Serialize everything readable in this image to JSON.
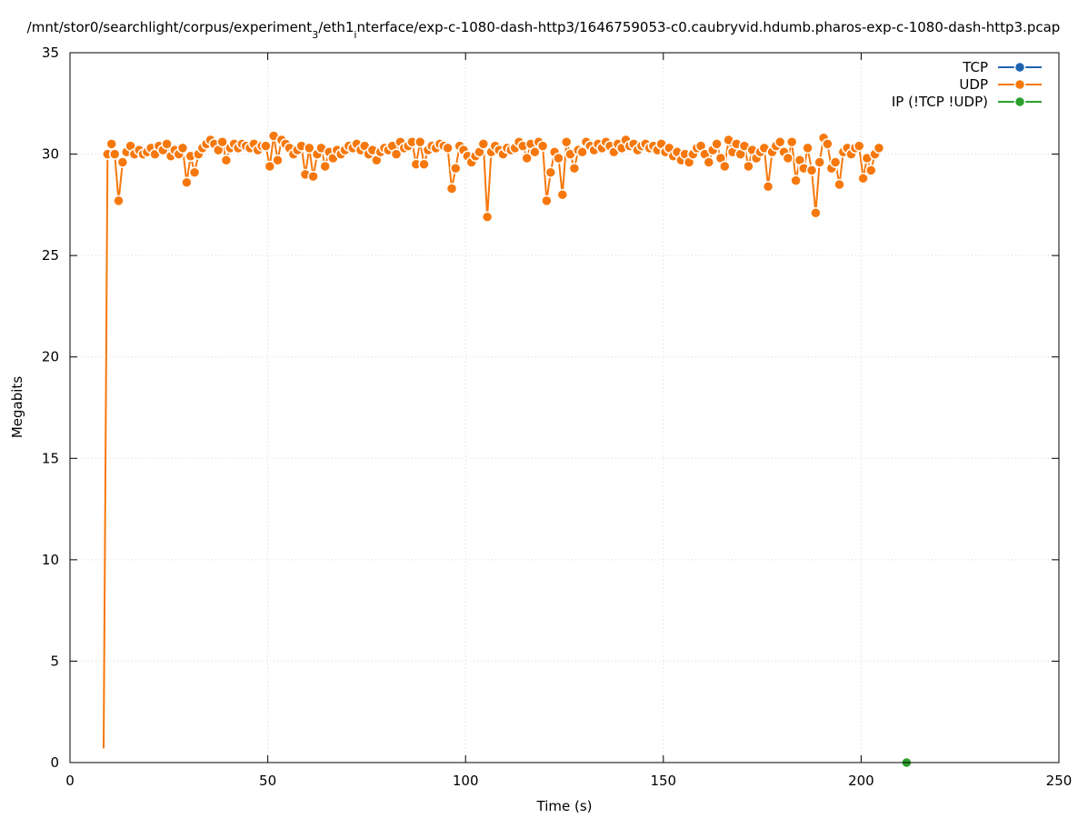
{
  "chart_data": {
    "type": "line",
    "title": "/mnt/stor0/searchlight/corpus/experiment_3/eth1_interface/exp-c-1080-dash-http3/1646759053-c0.caubryvid.hdumb.pharos-exp-c-1080-dash-http3.pcap",
    "title_parts": {
      "pre": "/mnt/stor0/searchlight/corpus/experiment",
      "sub1": "3",
      "mid": "/eth1",
      "sub2": "i",
      "post": "nterface/exp-c-1080-dash-http3/1646759053-c0.caubryvid.hdumb.pharos-exp-c-1080-dash-http3.pcap"
    },
    "xlabel": "Time (s)",
    "ylabel": "Megabits",
    "xlim": [
      0,
      250
    ],
    "ylim": [
      0,
      35
    ],
    "xticks": [
      0,
      50,
      100,
      150,
      200,
      250
    ],
    "yticks": [
      0,
      5,
      10,
      15,
      20,
      25,
      30,
      35
    ],
    "grid": true,
    "legend_position": "top-right",
    "series": [
      {
        "name": "TCP",
        "color": "#1f62b0",
        "points": []
      },
      {
        "name": "UDP",
        "color": "#f6780c",
        "points": [
          [
            8.5,
            0.7
          ],
          [
            9.5,
            30.0
          ],
          [
            10.5,
            30.5
          ],
          [
            11.3,
            30.0
          ],
          [
            12.3,
            27.7
          ],
          [
            13.3,
            29.6
          ],
          [
            14.3,
            30.1
          ],
          [
            15.3,
            30.4
          ],
          [
            16.3,
            30.0
          ],
          [
            17.5,
            30.2
          ],
          [
            18.5,
            30.0
          ],
          [
            19.5,
            30.1
          ],
          [
            20.5,
            30.3
          ],
          [
            21.5,
            30.0
          ],
          [
            22.5,
            30.4
          ],
          [
            23.5,
            30.2
          ],
          [
            24.5,
            30.5
          ],
          [
            25.5,
            29.9
          ],
          [
            26.5,
            30.2
          ],
          [
            27.5,
            30.0
          ],
          [
            28.5,
            30.3
          ],
          [
            29.5,
            28.6
          ],
          [
            30.5,
            29.9
          ],
          [
            31.5,
            29.1
          ],
          [
            32.5,
            30.0
          ],
          [
            33.5,
            30.3
          ],
          [
            34.5,
            30.5
          ],
          [
            35.5,
            30.7
          ],
          [
            36.5,
            30.5
          ],
          [
            37.5,
            30.2
          ],
          [
            38.5,
            30.6
          ],
          [
            39.5,
            29.7
          ],
          [
            40.5,
            30.3
          ],
          [
            41.5,
            30.5
          ],
          [
            42.5,
            30.3
          ],
          [
            43.5,
            30.5
          ],
          [
            44.5,
            30.4
          ],
          [
            45.5,
            30.3
          ],
          [
            46.5,
            30.5
          ],
          [
            47.5,
            30.2
          ],
          [
            48.5,
            30.4
          ],
          [
            49.5,
            30.4
          ],
          [
            50.5,
            29.4
          ],
          [
            51.5,
            30.9
          ],
          [
            52.5,
            29.7
          ],
          [
            53.5,
            30.7
          ],
          [
            54.5,
            30.5
          ],
          [
            55.5,
            30.3
          ],
          [
            56.5,
            30.0
          ],
          [
            57.5,
            30.2
          ],
          [
            58.5,
            30.4
          ],
          [
            59.5,
            29.0
          ],
          [
            60.5,
            30.3
          ],
          [
            61.5,
            28.9
          ],
          [
            62.5,
            30.0
          ],
          [
            63.5,
            30.3
          ],
          [
            64.5,
            29.4
          ],
          [
            65.5,
            30.1
          ],
          [
            66.5,
            29.8
          ],
          [
            67.5,
            30.2
          ],
          [
            68.5,
            30.0
          ],
          [
            69.5,
            30.2
          ],
          [
            70.5,
            30.4
          ],
          [
            71.5,
            30.3
          ],
          [
            72.5,
            30.5
          ],
          [
            73.5,
            30.2
          ],
          [
            74.5,
            30.4
          ],
          [
            75.5,
            30.0
          ],
          [
            76.5,
            30.2
          ],
          [
            77.5,
            29.7
          ],
          [
            78.5,
            30.1
          ],
          [
            79.5,
            30.3
          ],
          [
            80.5,
            30.2
          ],
          [
            81.5,
            30.4
          ],
          [
            82.5,
            30.0
          ],
          [
            83.5,
            30.6
          ],
          [
            84.5,
            30.3
          ],
          [
            85.5,
            30.4
          ],
          [
            86.5,
            30.6
          ],
          [
            87.5,
            29.5
          ],
          [
            88.5,
            30.6
          ],
          [
            89.5,
            29.5
          ],
          [
            90.5,
            30.2
          ],
          [
            91.5,
            30.4
          ],
          [
            92.5,
            30.3
          ],
          [
            93.5,
            30.5
          ],
          [
            94.5,
            30.4
          ],
          [
            95.5,
            30.3
          ],
          [
            96.5,
            28.3
          ],
          [
            97.5,
            29.3
          ],
          [
            98.5,
            30.4
          ],
          [
            99.5,
            30.2
          ],
          [
            100.5,
            29.9
          ],
          [
            101.5,
            29.6
          ],
          [
            102.5,
            29.9
          ],
          [
            103.5,
            30.1
          ],
          [
            104.5,
            30.5
          ],
          [
            105.5,
            26.9
          ],
          [
            106.5,
            30.1
          ],
          [
            107.5,
            30.4
          ],
          [
            108.5,
            30.2
          ],
          [
            109.5,
            30.0
          ],
          [
            110.5,
            30.3
          ],
          [
            111.5,
            30.2
          ],
          [
            112.5,
            30.3
          ],
          [
            113.5,
            30.6
          ],
          [
            114.5,
            30.4
          ],
          [
            115.5,
            29.8
          ],
          [
            116.5,
            30.5
          ],
          [
            117.5,
            30.1
          ],
          [
            118.5,
            30.6
          ],
          [
            119.5,
            30.4
          ],
          [
            120.5,
            27.7
          ],
          [
            121.5,
            29.1
          ],
          [
            122.5,
            30.1
          ],
          [
            123.5,
            29.8
          ],
          [
            124.5,
            28.0
          ],
          [
            125.5,
            30.6
          ],
          [
            126.5,
            30.0
          ],
          [
            127.5,
            29.3
          ],
          [
            128.5,
            30.2
          ],
          [
            129.5,
            30.1
          ],
          [
            130.5,
            30.6
          ],
          [
            131.5,
            30.4
          ],
          [
            132.5,
            30.2
          ],
          [
            133.5,
            30.5
          ],
          [
            134.5,
            30.3
          ],
          [
            135.5,
            30.6
          ],
          [
            136.5,
            30.4
          ],
          [
            137.5,
            30.1
          ],
          [
            138.5,
            30.5
          ],
          [
            139.5,
            30.3
          ],
          [
            140.5,
            30.7
          ],
          [
            141.5,
            30.4
          ],
          [
            142.5,
            30.5
          ],
          [
            143.5,
            30.2
          ],
          [
            144.5,
            30.4
          ],
          [
            145.5,
            30.5
          ],
          [
            146.5,
            30.3
          ],
          [
            147.5,
            30.4
          ],
          [
            148.5,
            30.2
          ],
          [
            149.5,
            30.5
          ],
          [
            150.5,
            30.1
          ],
          [
            151.5,
            30.3
          ],
          [
            152.5,
            29.9
          ],
          [
            153.5,
            30.1
          ],
          [
            154.5,
            29.7
          ],
          [
            155.5,
            30.0
          ],
          [
            156.5,
            29.6
          ],
          [
            157.5,
            30.0
          ],
          [
            158.5,
            30.3
          ],
          [
            159.5,
            30.4
          ],
          [
            160.5,
            30.0
          ],
          [
            161.5,
            29.6
          ],
          [
            162.5,
            30.2
          ],
          [
            163.5,
            30.5
          ],
          [
            164.5,
            29.8
          ],
          [
            165.5,
            29.4
          ],
          [
            166.5,
            30.7
          ],
          [
            167.5,
            30.1
          ],
          [
            168.5,
            30.5
          ],
          [
            169.5,
            30.0
          ],
          [
            170.5,
            30.4
          ],
          [
            171.5,
            29.4
          ],
          [
            172.5,
            30.2
          ],
          [
            173.5,
            29.8
          ],
          [
            174.5,
            30.1
          ],
          [
            175.5,
            30.3
          ],
          [
            176.5,
            28.4
          ],
          [
            177.5,
            30.1
          ],
          [
            178.5,
            30.4
          ],
          [
            179.5,
            30.6
          ],
          [
            180.5,
            30.1
          ],
          [
            181.5,
            29.8
          ],
          [
            182.5,
            30.6
          ],
          [
            183.5,
            28.7
          ],
          [
            184.5,
            29.7
          ],
          [
            185.5,
            29.3
          ],
          [
            186.5,
            30.3
          ],
          [
            187.5,
            29.2
          ],
          [
            188.5,
            27.1
          ],
          [
            189.5,
            29.6
          ],
          [
            190.5,
            30.8
          ],
          [
            191.5,
            30.5
          ],
          [
            192.5,
            29.3
          ],
          [
            193.5,
            29.6
          ],
          [
            194.5,
            28.5
          ],
          [
            195.5,
            30.1
          ],
          [
            196.5,
            30.3
          ],
          [
            197.5,
            30.0
          ],
          [
            198.5,
            30.3
          ],
          [
            199.5,
            30.4
          ],
          [
            200.5,
            28.8
          ],
          [
            201.5,
            29.8
          ],
          [
            202.5,
            29.2
          ],
          [
            203.5,
            30.0
          ],
          [
            204.5,
            30.3
          ]
        ]
      },
      {
        "name": "IP (!TCP  !UDP)",
        "color": "#2ca02c",
        "points": [
          [
            211.5,
            0
          ]
        ]
      }
    ]
  }
}
